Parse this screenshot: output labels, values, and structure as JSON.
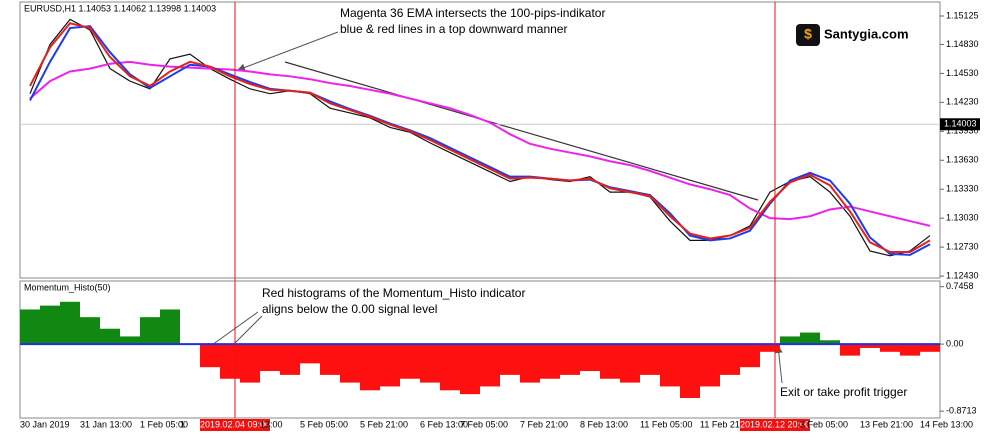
{
  "brand": "Santygia.com",
  "chart_data": [
    {
      "type": "line",
      "title": "EURUSD,H1  1.14053 1.14062 1.13998 1.14003",
      "categories": [
        "30 Jan 2019",
        null,
        null,
        "31 Jan 13:00",
        null,
        null,
        "1 Feb 05:00",
        null,
        "1",
        "2019.02.04 09:00",
        null,
        null,
        "13:00",
        null,
        "5 Feb 05:00",
        null,
        null,
        "5 Feb 21:00",
        null,
        null,
        "6 Feb 13:00",
        null,
        "7 Feb 05:00",
        null,
        null,
        "7 Feb 21:00",
        null,
        null,
        "8 Feb 13:00",
        null,
        null,
        "11 Feb 05:00",
        null,
        null,
        "11 Feb 21:00",
        null,
        "2019.02.12 20:00",
        null,
        null,
        "3 Feb 05:00",
        null,
        null,
        "13 Feb 21:00",
        null,
        null,
        "14 Feb 13:00"
      ],
      "highlighted": [
        9,
        36
      ],
      "highlight_color": "#f01010",
      "series": [
        {
          "color": "#111111",
          "values": [
            1.1432,
            1.1483,
            1.1509,
            1.1498,
            1.1458,
            1.1445,
            1.1437,
            1.1468,
            1.1473,
            1.1458,
            1.1447,
            1.1437,
            1.1432,
            1.1435,
            1.1432,
            1.1417,
            1.1412,
            1.1407,
            1.1397,
            1.1392,
            1.1381,
            1.1371,
            1.1361,
            1.1351,
            1.1341,
            1.1346,
            1.1343,
            1.1341,
            1.1346,
            1.133,
            1.133,
            1.1325,
            1.13,
            1.128,
            1.128,
            1.1285,
            1.1295,
            1.133,
            1.1341,
            1.1346,
            1.133,
            1.1305,
            1.1269,
            1.1264,
            1.1269,
            1.1285
          ]
        },
        {
          "color": "#ee22ee",
          "values": [
            1.1427,
            1.1445,
            1.1455,
            1.1458,
            1.1463,
            1.1465,
            1.1462,
            1.146,
            1.1459,
            1.1458,
            1.1457,
            1.1455,
            1.1452,
            1.145,
            1.1447,
            1.1443,
            1.144,
            1.1436,
            1.1432,
            1.1427,
            1.1422,
            1.1417,
            1.141,
            1.1402,
            1.139,
            1.138,
            1.1375,
            1.1371,
            1.1367,
            1.1362,
            1.1358,
            1.1352,
            1.1345,
            1.1338,
            1.1333,
            1.1327,
            1.1313,
            1.1303,
            1.1302,
            1.1305,
            1.1312,
            1.1315,
            1.131,
            1.1305,
            1.13,
            1.1295
          ]
        },
        {
          "color": "#1a3cf0",
          "values": [
            1.1425,
            1.1465,
            1.15,
            1.1502,
            1.1475,
            1.1452,
            1.1438,
            1.145,
            1.1462,
            1.146,
            1.1452,
            1.1444,
            1.1437,
            1.1435,
            1.1433,
            1.1424,
            1.1416,
            1.1409,
            1.1401,
            1.1394,
            1.1386,
            1.1376,
            1.1366,
            1.1356,
            1.1346,
            1.1346,
            1.1344,
            1.1342,
            1.1343,
            1.1335,
            1.1331,
            1.1327,
            1.1308,
            1.1285,
            1.128,
            1.1282,
            1.129,
            1.1318,
            1.1342,
            1.135,
            1.1342,
            1.1318,
            1.1283,
            1.1266,
            1.1265,
            1.1276
          ]
        },
        {
          "color": "#e8201a",
          "values": [
            1.144,
            1.148,
            1.1505,
            1.15,
            1.147,
            1.145,
            1.144,
            1.1455,
            1.1465,
            1.146,
            1.145,
            1.1442,
            1.1436,
            1.1435,
            1.1433,
            1.1422,
            1.1415,
            1.1408,
            1.14,
            1.1393,
            1.1384,
            1.1374,
            1.1364,
            1.1354,
            1.1344,
            1.1345,
            1.1344,
            1.1342,
            1.1344,
            1.1334,
            1.133,
            1.1326,
            1.1305,
            1.1287,
            1.1282,
            1.1285,
            1.1293,
            1.132,
            1.134,
            1.1348,
            1.1337,
            1.131,
            1.1278,
            1.1268,
            1.1268,
            1.128
          ]
        }
      ],
      "current_price": 1.14003,
      "ylim": [
        1.1241,
        1.1527
      ],
      "yticks": [
        1.15125,
        {
          "value": 1.1483,
          "label": "1.14830"
        },
        {
          "value": 1.1453,
          "label": "1.14530"
        },
        {
          "value": 1.1423,
          "label": "1.14230"
        },
        {
          "value": 1.1393,
          "label": "1.13930"
        },
        {
          "value": 1.1363,
          "label": "1.13630"
        },
        {
          "value": 1.1333,
          "label": "1.13330"
        },
        {
          "value": 1.1303,
          "label": "1.13030"
        },
        {
          "value": 1.1273,
          "label": "1.12730"
        },
        {
          "value": 1.1243,
          "label": "1.12430"
        }
      ],
      "annotations": [
        "Magenta 36 EMA intersects the 100-pips-indikator",
        "blue & red lines in a top downward manner"
      ]
    },
    {
      "type": "bar",
      "title": "Momentum_Histo(50)",
      "values": [
        0.45,
        0.5,
        0.55,
        0.35,
        0.2,
        0.1,
        0.35,
        0.45,
        0,
        -0.3,
        -0.45,
        -0.5,
        -0.35,
        -0.4,
        -0.25,
        -0.4,
        -0.5,
        -0.6,
        -0.55,
        -0.45,
        -0.5,
        -0.6,
        -0.65,
        -0.55,
        -0.4,
        -0.5,
        -0.45,
        -0.4,
        -0.35,
        -0.45,
        -0.5,
        -0.4,
        -0.55,
        -0.7,
        -0.55,
        -0.4,
        -0.3,
        -0.1,
        0.1,
        0.15,
        0.05,
        -0.15,
        -0.05,
        -0.1,
        -0.15,
        -0.1
      ],
      "positive_color": "#118811",
      "negative_color": "#ff1010",
      "zero_line_color": "#2030e0",
      "ylim": [
        -0.96,
        0.82
      ],
      "yticks": [
        0.7458,
        {
          "value": 0,
          "label": "0.00"
        },
        -0.8713
      ],
      "annotations": [
        "Red histograms of the Momentum_Histo indicator",
        "aligns below the 0.00 signal level",
        "Exit or take profit trigger"
      ]
    }
  ]
}
